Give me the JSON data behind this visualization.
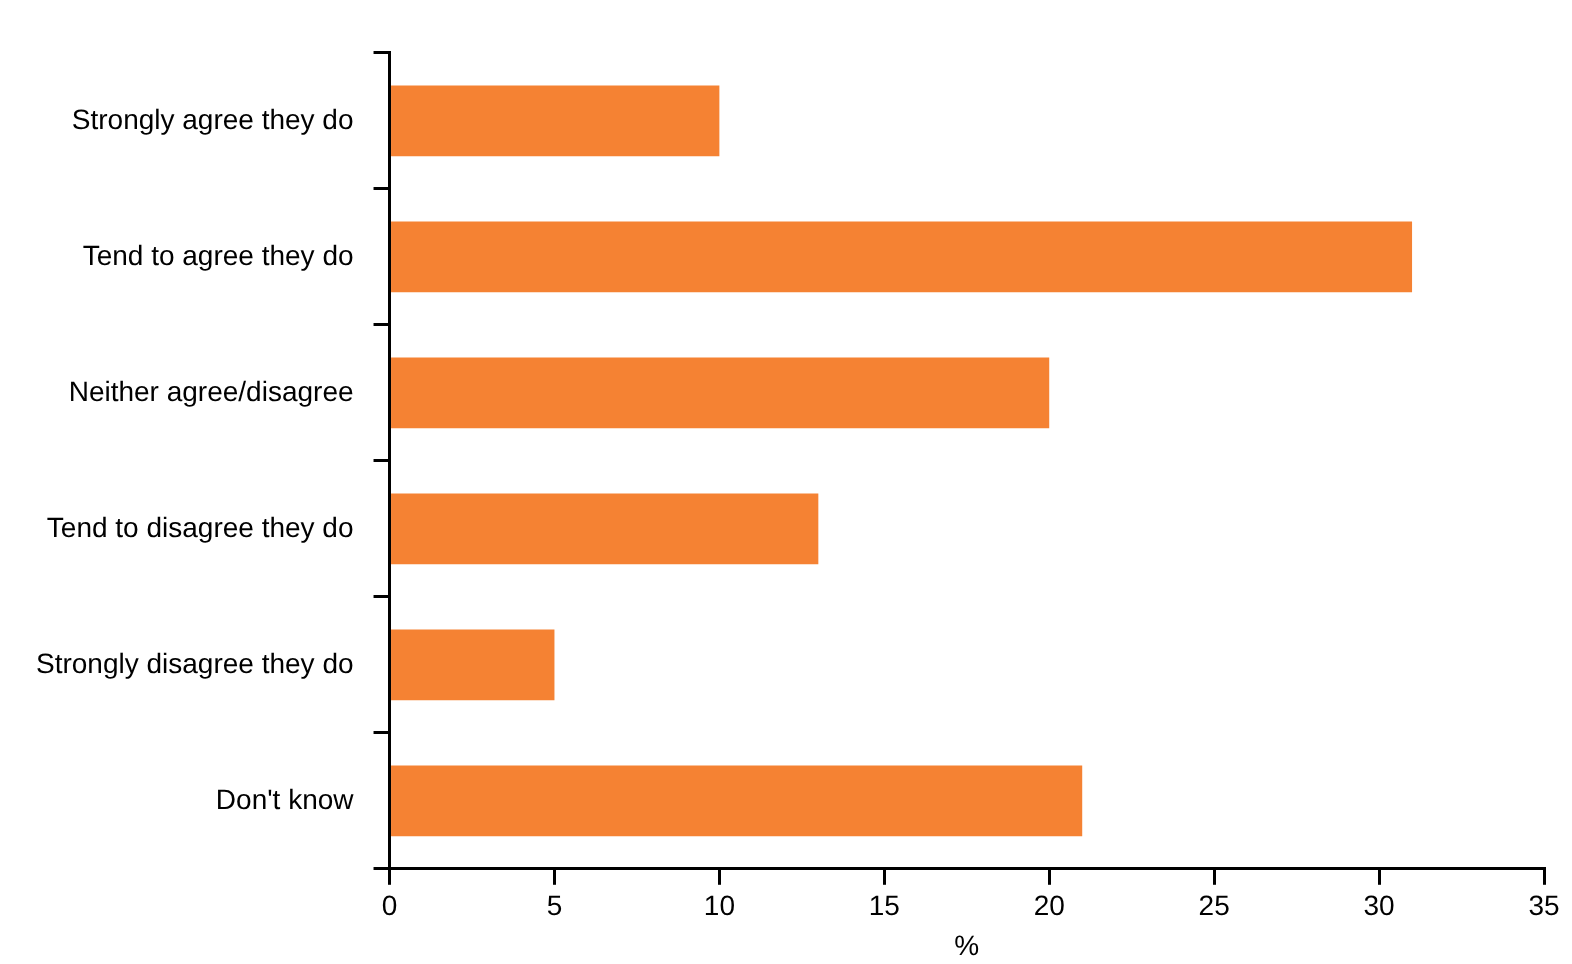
{
  "chart_data": {
    "type": "bar",
    "orientation": "horizontal",
    "xlabel": "%",
    "categories": [
      "Strongly agree they do",
      "Tend to agree they do",
      "Neither agree/disagree",
      "Tend to disagree they do",
      "Strongly disagree they do",
      "Don't know"
    ],
    "values": [
      10,
      31,
      20,
      13,
      5,
      21
    ],
    "color": "#f58233",
    "xlim": [
      0,
      35
    ],
    "xticks": [
      0,
      5,
      10,
      15,
      20,
      25,
      30,
      35
    ],
    "grid": false,
    "legend": false
  }
}
